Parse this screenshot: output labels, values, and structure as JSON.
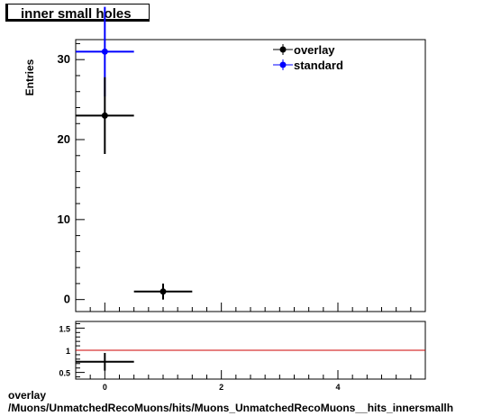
{
  "title": "inner small holes",
  "footer": {
    "line1": "overlay",
    "line2": "/Muons/UnmatchedRecoMuons/hits/Muons_UnmatchedRecoMuons__hits_innersmallh"
  },
  "colors": {
    "overlay": "#000000",
    "standard": "#0000ff",
    "ratio_line": "#cc0000"
  },
  "chart_data": [
    {
      "type": "scatter",
      "ylabel": "Entries",
      "xlim": [
        -0.5,
        5.5
      ],
      "ylim": [
        -1.5,
        32.5
      ],
      "x_ticks": [
        0,
        2,
        4
      ],
      "y_ticks": [
        0,
        10,
        20,
        30
      ],
      "legend": {
        "placement": "top-right",
        "entries": [
          "overlay",
          "standard"
        ]
      },
      "series": [
        {
          "name": "overlay",
          "color": "#000000",
          "points": [
            {
              "x": 0,
              "xerr": 0.5,
              "y": 23,
              "yerr": 4.8
            },
            {
              "x": 1,
              "xerr": 0.5,
              "y": 1,
              "yerr": 1
            }
          ]
        },
        {
          "name": "standard",
          "color": "#0000ff",
          "points": [
            {
              "x": 0,
              "xerr": 0.5,
              "y": 31,
              "yerr": 5.6
            }
          ]
        }
      ]
    },
    {
      "type": "scatter",
      "xlim": [
        -0.5,
        5.5
      ],
      "ylim": [
        0.35,
        1.65
      ],
      "x_ticks": [
        0,
        2,
        4
      ],
      "y_ticks": [
        0.5,
        1,
        1.5
      ],
      "reference_line": 1,
      "series": [
        {
          "name": "ratio",
          "color": "#000000",
          "points": [
            {
              "x": 0,
              "xerr": 0.5,
              "y": 0.74,
              "yerr": 0.2
            }
          ]
        }
      ]
    }
  ]
}
